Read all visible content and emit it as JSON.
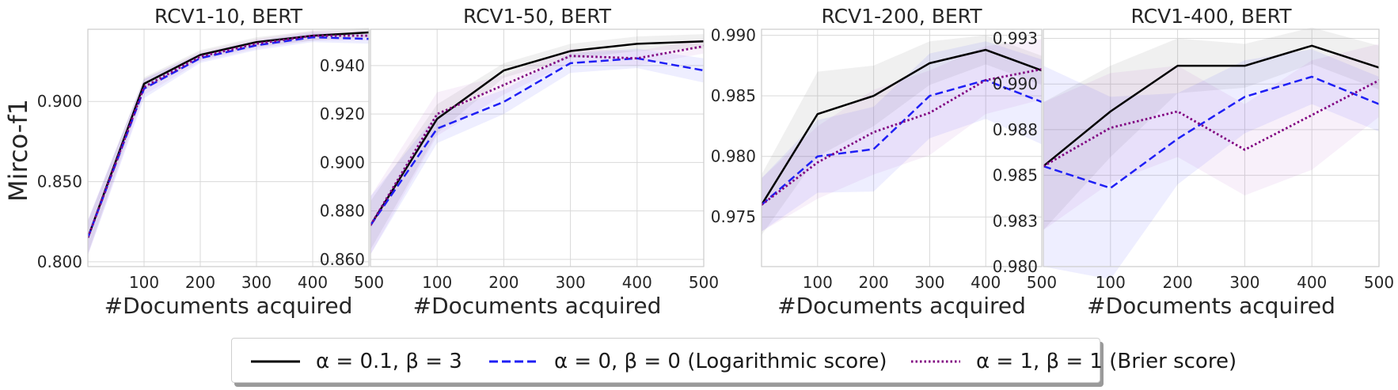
{
  "figure": {
    "ylabel": "Mirco-f1",
    "xlabel": "#Documents acquired"
  },
  "legend": [
    {
      "series": "a01b3",
      "label": "α = 0.1, β = 3",
      "color": "#000000",
      "style": "solid"
    },
    {
      "series": "a0b0",
      "label": "α = 0, β = 0 (Logarithmic score)",
      "color": "#1f1ff5",
      "style": "dashed"
    },
    {
      "series": "a1b1",
      "label": "α = 1, β = 1 (Brier score)",
      "color": "#800080",
      "style": "dotted"
    }
  ],
  "chart_data": [
    {
      "type": "line",
      "title": "RCV1-10, BERT",
      "xlabel": "#Documents acquired",
      "ylabel": "Mirco-f1",
      "x": [
        0,
        100,
        200,
        300,
        400,
        500
      ],
      "xlim": [
        0,
        500
      ],
      "ylim": [
        0.797,
        0.945
      ],
      "xticks": [
        100,
        200,
        300,
        400,
        500
      ],
      "yticks": [
        0.8,
        0.85,
        0.9
      ],
      "ytick_labels": [
        "0.800",
        "0.850",
        "0.900"
      ],
      "grid": true,
      "series": [
        {
          "name": "α = 0.1, β = 3",
          "values": [
            0.815,
            0.911,
            0.929,
            0.937,
            0.941,
            0.943
          ],
          "band": [
            0.01,
            0.004,
            0.003,
            0.003,
            0.003,
            0.003
          ]
        },
        {
          "name": "α = 0, β = 0 (Logarithmic score)",
          "values": [
            0.815,
            0.908,
            0.927,
            0.935,
            0.94,
            0.939
          ],
          "band": [
            0.011,
            0.006,
            0.003,
            0.003,
            0.003,
            0.003
          ]
        },
        {
          "name": "α = 1, β = 1 (Brier score)",
          "values": [
            0.815,
            0.909,
            0.928,
            0.936,
            0.941,
            0.941
          ],
          "band": [
            0.011,
            0.005,
            0.003,
            0.003,
            0.003,
            0.003
          ]
        }
      ]
    },
    {
      "type": "line",
      "title": "RCV1-50, BERT",
      "xlabel": "#Documents acquired",
      "ylabel": "",
      "x": [
        0,
        100,
        200,
        300,
        400,
        500
      ],
      "xlim": [
        0,
        500
      ],
      "ylim": [
        0.857,
        0.955
      ],
      "xticks": [
        100,
        200,
        300,
        400,
        500
      ],
      "yticks": [
        0.86,
        0.88,
        0.9,
        0.92,
        0.94
      ],
      "ytick_labels": [
        "0.860",
        "0.880",
        "0.900",
        "0.920",
        "0.940"
      ],
      "grid": true,
      "series": [
        {
          "name": "α = 0.1, β = 3",
          "values": [
            0.874,
            0.918,
            0.938,
            0.946,
            0.949,
            0.95
          ],
          "band": [
            0.01,
            0.006,
            0.003,
            0.003,
            0.003,
            0.003
          ]
        },
        {
          "name": "α = 0, β = 0 (Logarithmic score)",
          "values": [
            0.874,
            0.914,
            0.925,
            0.941,
            0.943,
            0.938
          ],
          "band": [
            0.012,
            0.006,
            0.005,
            0.004,
            0.004,
            0.005
          ]
        },
        {
          "name": "α = 1, β = 1 (Brier score)",
          "values": [
            0.874,
            0.92,
            0.932,
            0.944,
            0.943,
            0.948
          ],
          "band": [
            0.012,
            0.009,
            0.004,
            0.003,
            0.003,
            0.003
          ]
        }
      ]
    },
    {
      "type": "line",
      "title": "RCV1-200, BERT",
      "xlabel": "#Documents acquired",
      "ylabel": "",
      "x": [
        0,
        100,
        200,
        300,
        400,
        500
      ],
      "xlim": [
        0,
        500
      ],
      "ylim": [
        0.9709,
        0.9905
      ],
      "xticks": [
        100,
        200,
        300,
        400,
        500
      ],
      "yticks": [
        0.975,
        0.98,
        0.985,
        0.99
      ],
      "ytick_labels": [
        "0.975",
        "0.980",
        "0.985",
        "0.990"
      ],
      "grid": true,
      "series": [
        {
          "name": "α = 0.1, β = 3",
          "values": [
            0.976,
            0.9835,
            0.985,
            0.9877,
            0.9888,
            0.9871
          ],
          "band": [
            0.0025,
            0.0035,
            0.0025,
            0.0018,
            0.0012,
            0.0012
          ]
        },
        {
          "name": "α = 0, β = 0 (Logarithmic score)",
          "values": [
            0.976,
            0.98,
            0.9806,
            0.985,
            0.9863,
            0.9845
          ],
          "band": [
            0.0022,
            0.003,
            0.0035,
            0.0035,
            0.0032,
            0.0035
          ]
        },
        {
          "name": "α = 1, β = 1 (Brier score)",
          "values": [
            0.976,
            0.9795,
            0.982,
            0.9836,
            0.9863,
            0.9872
          ],
          "band": [
            0.0022,
            0.003,
            0.0035,
            0.0035,
            0.0028,
            0.0025
          ]
        }
      ]
    },
    {
      "type": "line",
      "title": "RCV1-400, BERT",
      "xlabel": "#Documents acquired",
      "ylabel": "",
      "x": [
        0,
        100,
        200,
        300,
        400,
        500
      ],
      "xlim": [
        0,
        500
      ],
      "ylim": [
        0.98,
        0.993
      ],
      "xticks": [
        100,
        200,
        300,
        400,
        500
      ],
      "yticks": [
        0.98,
        0.9825,
        0.985,
        0.9875,
        0.99,
        0.9925
      ],
      "ytick_labels": [
        "0.980",
        "0.983",
        "0.985",
        "0.988",
        "0.990",
        "0.993"
      ],
      "grid": true,
      "series": [
        {
          "name": "α = 0.1, β = 3",
          "values": [
            0.9855,
            0.9885,
            0.991,
            0.991,
            0.9921,
            0.9909
          ],
          "band": [
            0.0035,
            0.0025,
            0.0015,
            0.0012,
            0.001,
            0.0012
          ]
        },
        {
          "name": "α = 0, β = 0 (Logarithmic score)",
          "values": [
            0.9855,
            0.9843,
            0.987,
            0.9893,
            0.9904,
            0.9889
          ],
          "band": [
            0.0055,
            0.005,
            0.0025,
            0.002,
            0.0015,
            0.0015
          ]
        },
        {
          "name": "α = 1, β = 1 (Brier score)",
          "values": [
            0.9855,
            0.9876,
            0.9885,
            0.9864,
            0.9883,
            0.9902
          ],
          "band": [
            0.0035,
            0.003,
            0.0025,
            0.0025,
            0.003,
            0.002
          ]
        }
      ]
    }
  ]
}
